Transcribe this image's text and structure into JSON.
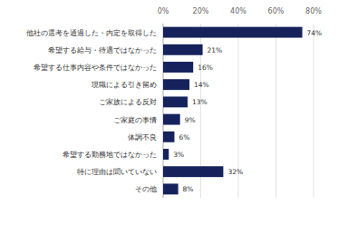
{
  "chart_data": {
    "type": "bar",
    "orientation": "horizontal",
    "categories": [
      "他社の選考を通過した・内定を取得した",
      "希望する給与・待遇ではなかった",
      "希望する仕事内容や条件ではなかった",
      "現職による引き留め",
      "ご家族による反対",
      "ご家庭の事情",
      "体調不良",
      "希望する勤務地ではなかった",
      "特に理由は聞いていない",
      "その他"
    ],
    "values": [
      74,
      21,
      16,
      14,
      13,
      9,
      6,
      3,
      32,
      8
    ],
    "value_labels": [
      "74%",
      "21%",
      "16%",
      "14%",
      "13%",
      "9%",
      "6%",
      "3%",
      "32%",
      "8%"
    ],
    "color": "#15225c",
    "xlim": [
      0,
      80
    ],
    "xticks": [
      {
        "value": 0,
        "label": "0%"
      },
      {
        "value": 20,
        "label": "20%"
      },
      {
        "value": 40,
        "label": "40%"
      },
      {
        "value": 60,
        "label": "60%"
      },
      {
        "value": 80,
        "label": "80%"
      }
    ],
    "grid": true,
    "data_labels": true
  }
}
